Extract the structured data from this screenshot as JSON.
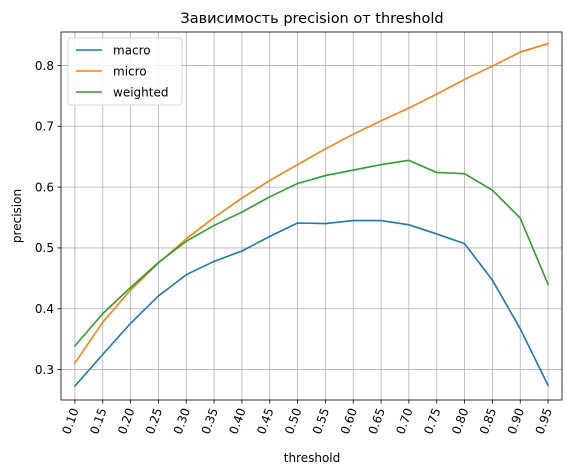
{
  "chart_data": {
    "type": "line",
    "title": "Зависимость precision от threshold",
    "xlabel": "threshold",
    "ylabel": "precision",
    "x": [
      0.1,
      0.15,
      0.2,
      0.25,
      0.3,
      0.35,
      0.4,
      0.45,
      0.5,
      0.55,
      0.6,
      0.65,
      0.7,
      0.75,
      0.8,
      0.85,
      0.9,
      0.95
    ],
    "x_tick_labels": [
      "0.10",
      "0.15",
      "0.20",
      "0.25",
      "0.30",
      "0.35",
      "0.40",
      "0.45",
      "0.50",
      "0.55",
      "0.60",
      "0.65",
      "0.70",
      "0.75",
      "0.80",
      "0.85",
      "0.90",
      "0.95"
    ],
    "y_ticks": [
      0.3,
      0.4,
      0.5,
      0.6,
      0.7,
      0.8
    ],
    "y_tick_labels": [
      "0.3",
      "0.4",
      "0.5",
      "0.6",
      "0.7",
      "0.8"
    ],
    "xlim": [
      0.075,
      0.975
    ],
    "ylim": [
      0.25,
      0.855
    ],
    "grid": true,
    "legend_position": "top-left",
    "series": [
      {
        "name": "macro",
        "color": "#1f77b4",
        "values": [
          0.273,
          0.325,
          0.376,
          0.421,
          0.456,
          0.478,
          0.495,
          0.519,
          0.541,
          0.54,
          0.545,
          0.545,
          0.538,
          0.523,
          0.507,
          0.447,
          0.367,
          0.274
        ]
      },
      {
        "name": "micro",
        "color": "#ff7f0e",
        "values": [
          0.311,
          0.378,
          0.431,
          0.475,
          0.515,
          0.55,
          0.582,
          0.611,
          0.637,
          0.663,
          0.687,
          0.709,
          0.73,
          0.753,
          0.777,
          0.799,
          0.822,
          0.836
        ]
      },
      {
        "name": "weighted",
        "color": "#2ca02c",
        "values": [
          0.339,
          0.392,
          0.435,
          0.476,
          0.511,
          0.537,
          0.559,
          0.584,
          0.606,
          0.619,
          0.628,
          0.637,
          0.644,
          0.624,
          0.622,
          0.595,
          0.549,
          0.44
        ]
      }
    ]
  }
}
